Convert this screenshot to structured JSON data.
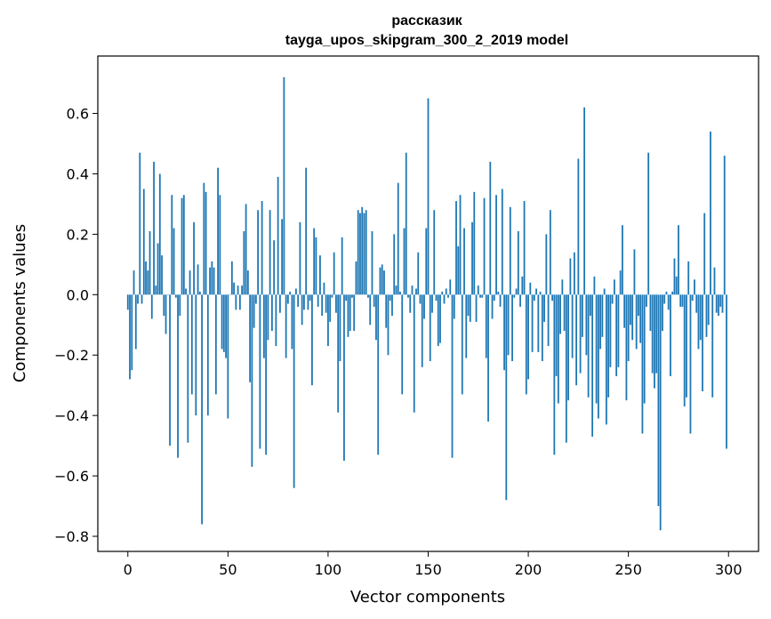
{
  "chart_data": {
    "type": "bar",
    "title": "рассказик",
    "subtitle": "tayga_upos_skipgram_300_2_2019 model",
    "xlabel": "Vector components",
    "ylabel": "Components values",
    "xlim": [
      -15,
      315
    ],
    "ylim": [
      -0.85,
      0.79
    ],
    "x_ticks": [
      0,
      50,
      100,
      150,
      200,
      250,
      300
    ],
    "x_tick_labels": [
      "0",
      "50",
      "100",
      "150",
      "200",
      "250",
      "300"
    ],
    "y_ticks": [
      -0.8,
      -0.6,
      -0.4,
      -0.2,
      0.0,
      0.2,
      0.4,
      0.6
    ],
    "y_tick_labels": [
      "−0.8",
      "−0.6",
      "−0.4",
      "−0.2",
      "0.0",
      "0.2",
      "0.4",
      "0.6"
    ],
    "grid": false,
    "bar_color": "#1f77b4",
    "values": [
      -0.05,
      -0.28,
      -0.25,
      0.08,
      -0.18,
      -0.03,
      0.47,
      -0.03,
      0.35,
      0.11,
      0.08,
      0.21,
      -0.08,
      0.44,
      0.03,
      0.17,
      0.4,
      0.13,
      -0.07,
      -0.13,
      0.0,
      -0.5,
      0.33,
      0.22,
      -0.01,
      -0.54,
      -0.07,
      0.32,
      0.33,
      0.02,
      -0.49,
      0.08,
      -0.33,
      0.24,
      -0.4,
      0.1,
      0.01,
      -0.76,
      0.37,
      0.34,
      -0.4,
      0.09,
      0.11,
      0.09,
      -0.33,
      0.42,
      0.33,
      -0.18,
      -0.19,
      -0.21,
      -0.41,
      0.0,
      0.11,
      0.04,
      -0.05,
      0.03,
      -0.05,
      0.03,
      0.21,
      0.3,
      0.08,
      -0.29,
      -0.57,
      -0.11,
      -0.03,
      0.28,
      -0.51,
      0.31,
      -0.21,
      -0.53,
      -0.15,
      0.28,
      -0.12,
      0.18,
      -0.17,
      0.39,
      -0.06,
      0.25,
      0.72,
      -0.21,
      -0.03,
      0.01,
      -0.18,
      -0.64,
      0.02,
      -0.04,
      0.24,
      -0.1,
      -0.05,
      0.42,
      -0.05,
      -0.02,
      -0.3,
      0.22,
      0.19,
      -0.04,
      0.13,
      -0.07,
      0.04,
      -0.06,
      -0.17,
      -0.09,
      -0.01,
      0.14,
      -0.06,
      -0.39,
      -0.22,
      0.19,
      -0.55,
      -0.02,
      -0.14,
      -0.12,
      -0.01,
      -0.12,
      0.11,
      0.28,
      0.27,
      0.29,
      0.27,
      0.28,
      -0.01,
      -0.1,
      0.21,
      -0.04,
      -0.15,
      -0.53,
      0.09,
      0.1,
      0.08,
      -0.11,
      -0.2,
      -0.02,
      -0.07,
      0.2,
      0.03,
      0.37,
      0.01,
      -0.33,
      0.22,
      0.47,
      -0.01,
      -0.06,
      0.03,
      -0.39,
      0.02,
      0.14,
      -0.03,
      -0.24,
      -0.08,
      0.22,
      0.65,
      -0.22,
      -0.06,
      0.28,
      -0.02,
      -0.17,
      -0.16,
      0.01,
      -0.03,
      0.02,
      -0.01,
      0.05,
      -0.54,
      -0.08,
      0.31,
      0.16,
      0.33,
      -0.33,
      0.22,
      -0.21,
      -0.07,
      -0.09,
      0.24,
      0.34,
      -0.09,
      0.03,
      -0.01,
      -0.01,
      0.32,
      -0.21,
      -0.42,
      0.44,
      -0.08,
      -0.02,
      0.33,
      0.01,
      -0.04,
      0.35,
      -0.25,
      -0.68,
      -0.2,
      0.29,
      -0.22,
      -0.01,
      0.02,
      0.21,
      -0.04,
      0.06,
      0.31,
      -0.33,
      -0.28,
      0.04,
      -0.19,
      -0.02,
      0.02,
      -0.19,
      0.01,
      -0.22,
      -0.09,
      0.2,
      -0.17,
      0.28,
      -0.02,
      -0.53,
      -0.27,
      -0.36,
      -0.13,
      0.05,
      -0.12,
      -0.49,
      -0.35,
      0.12,
      -0.21,
      0.14,
      -0.3,
      0.45,
      -0.26,
      -0.14,
      0.62,
      -0.2,
      -0.34,
      -0.07,
      -0.47,
      0.06,
      -0.36,
      -0.41,
      -0.18,
      -0.14,
      0.02,
      -0.43,
      -0.34,
      -0.24,
      -0.03,
      0.05,
      -0.27,
      -0.24,
      0.08,
      0.23,
      -0.11,
      -0.35,
      -0.22,
      -0.1,
      -0.15,
      0.15,
      -0.18,
      -0.07,
      -0.16,
      -0.46,
      -0.36,
      -0.04,
      0.47,
      -0.12,
      -0.26,
      -0.31,
      -0.26,
      -0.7,
      -0.78,
      -0.12,
      -0.03,
      0.01,
      -0.05,
      -0.27,
      0.01,
      0.12,
      0.06,
      0.23,
      -0.04,
      -0.04,
      -0.37,
      -0.34,
      0.11,
      -0.46,
      -0.02,
      0.05,
      -0.06,
      -0.18,
      -0.15,
      -0.32,
      0.27,
      -0.14,
      -0.1,
      0.54,
      -0.34,
      0.09,
      -0.06,
      -0.07,
      -0.04,
      -0.06,
      0.46,
      -0.51
    ]
  }
}
